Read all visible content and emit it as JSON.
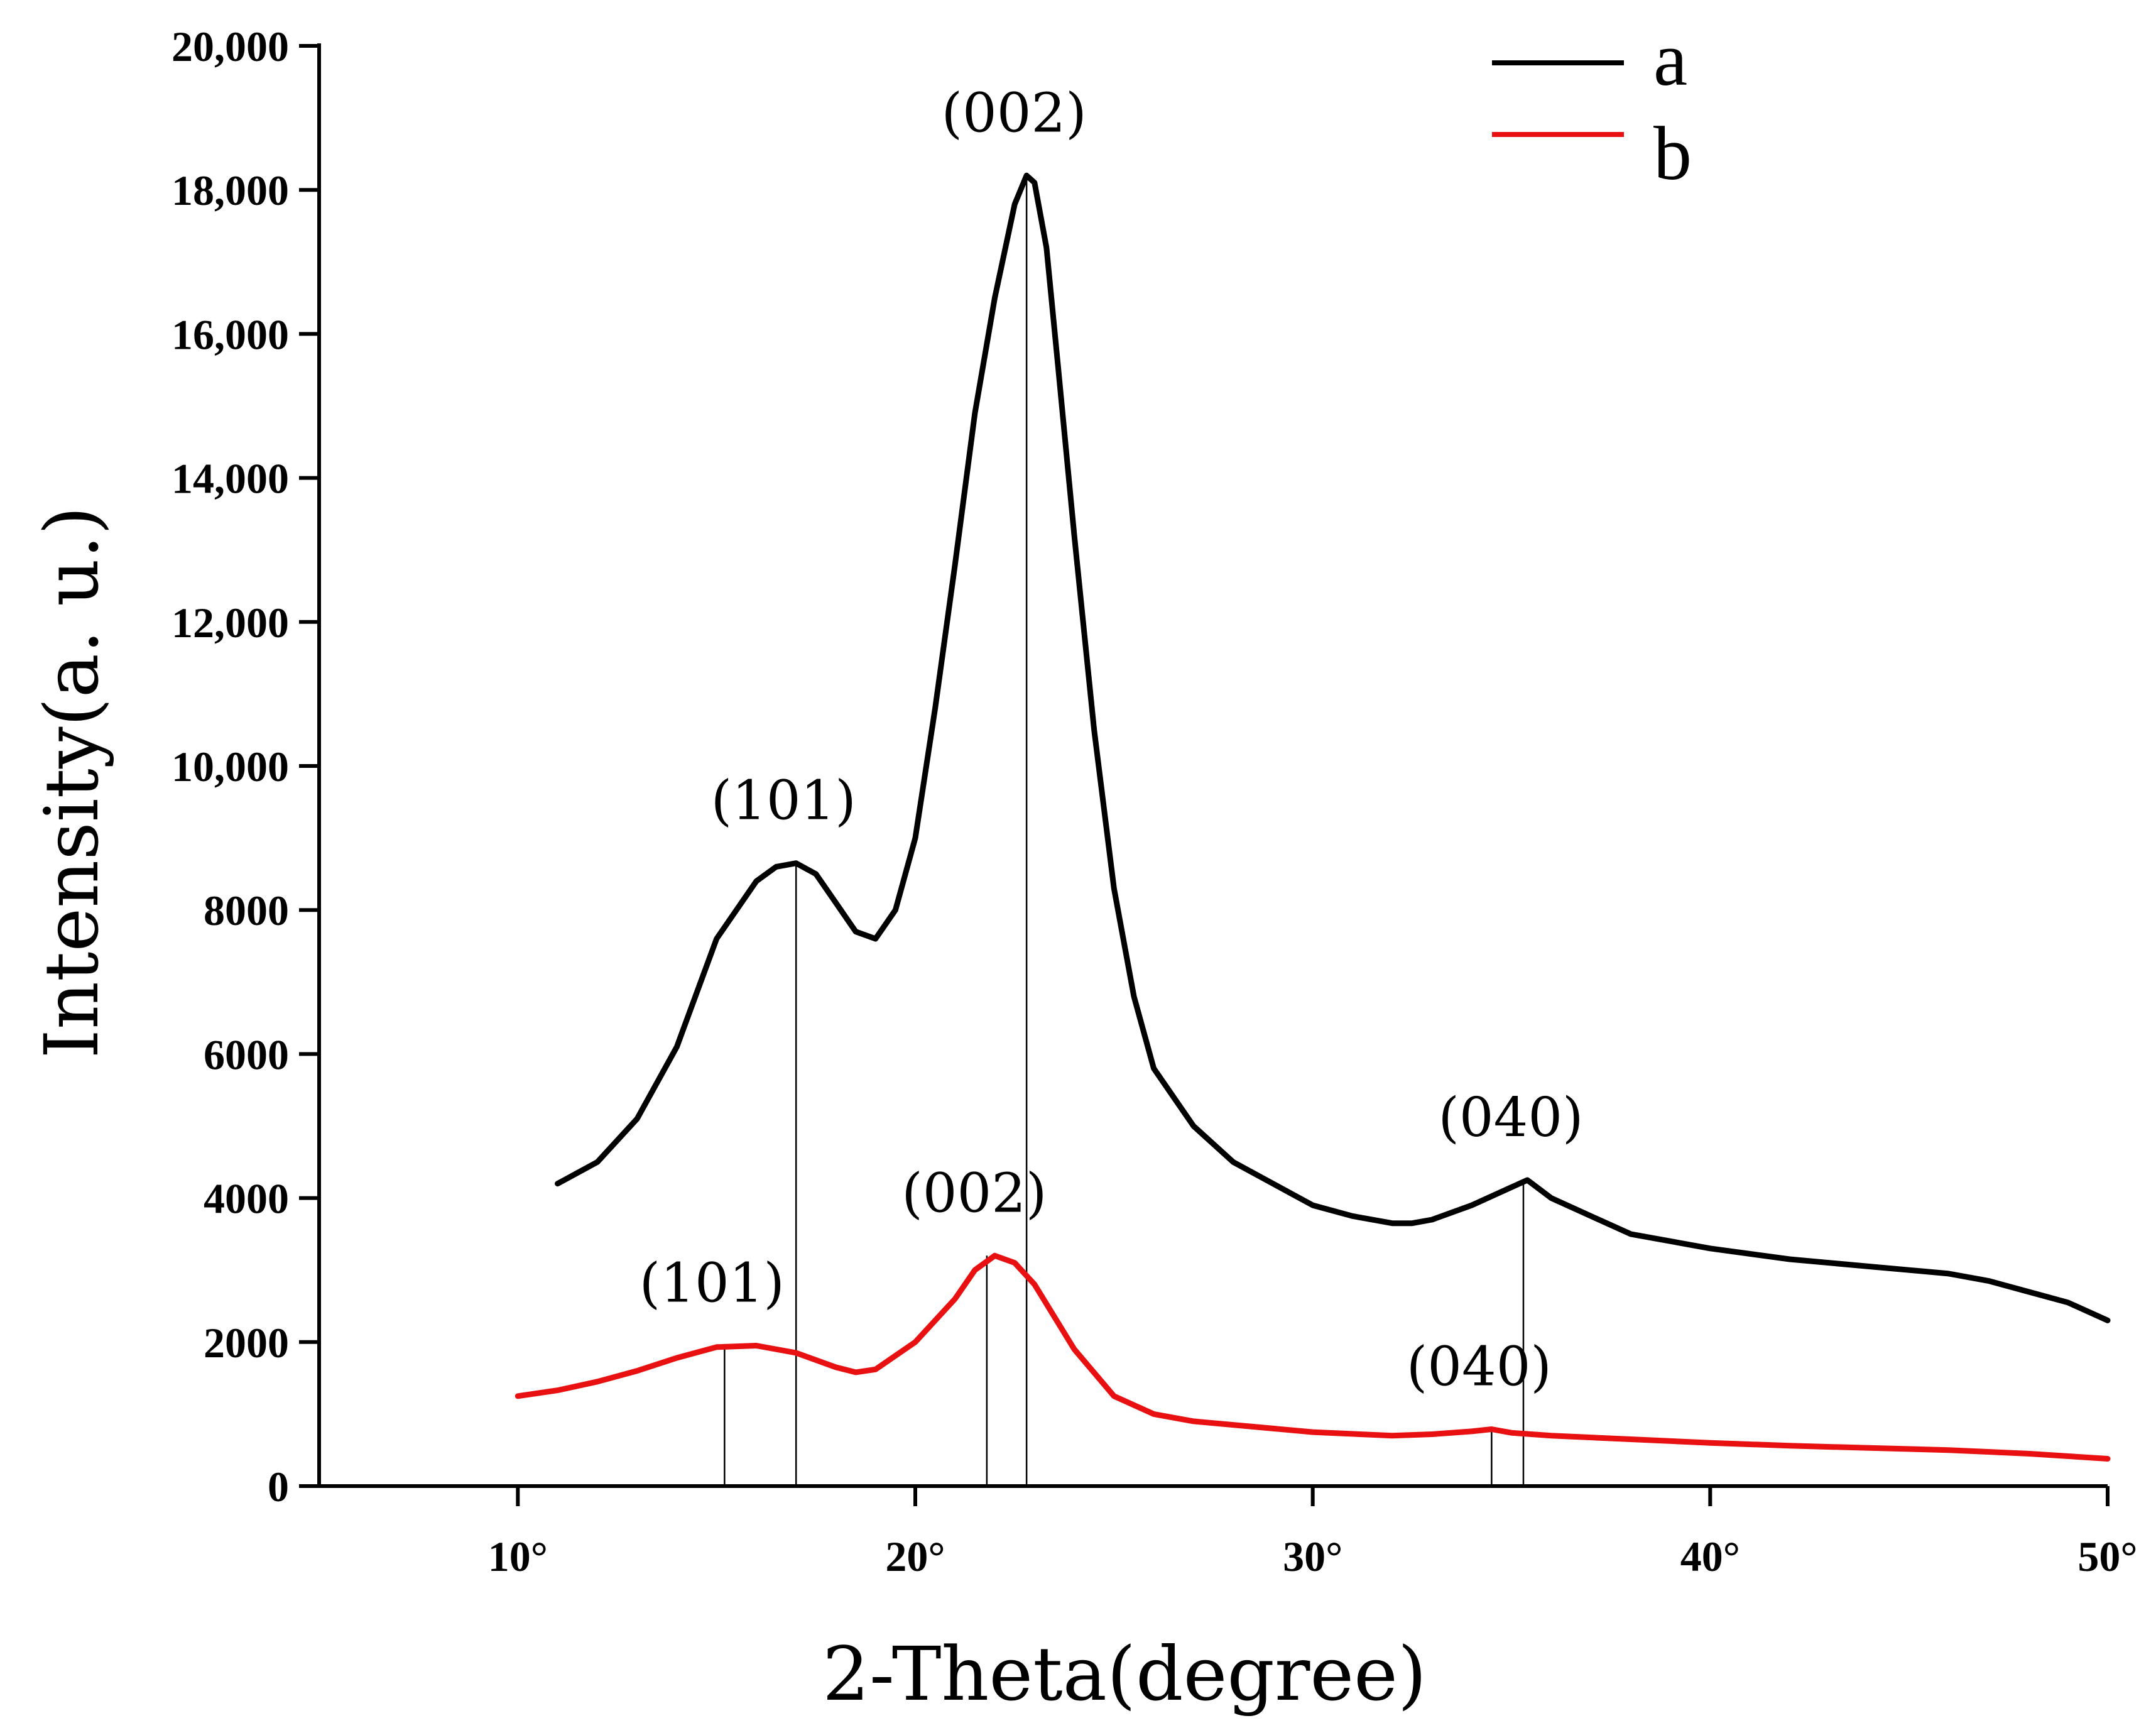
{
  "chart_data": {
    "type": "line",
    "title": "",
    "xlabel": "2-Theta(degree)",
    "ylabel": "Intensity(a. u.)",
    "xlim": [
      5,
      50
    ],
    "ylim": [
      0,
      20000
    ],
    "x_ticks": [
      {
        "value": 10,
        "label": "10°"
      },
      {
        "value": 20,
        "label": "20°"
      },
      {
        "value": 30,
        "label": "30°"
      },
      {
        "value": 40,
        "label": "40°"
      },
      {
        "value": 50,
        "label": "50°"
      }
    ],
    "y_ticks": [
      {
        "value": 0,
        "label": "0"
      },
      {
        "value": 2000,
        "label": "2000"
      },
      {
        "value": 4000,
        "label": "4000"
      },
      {
        "value": 6000,
        "label": "6000"
      },
      {
        "value": 8000,
        "label": "8000"
      },
      {
        "value": 10000,
        "label": "10,000"
      },
      {
        "value": 12000,
        "label": "12,000"
      },
      {
        "value": 14000,
        "label": "14,000"
      },
      {
        "value": 16000,
        "label": "16,000"
      },
      {
        "value": 18000,
        "label": "18,000"
      },
      {
        "value": 20000,
        "label": "20,000"
      }
    ],
    "grid": false,
    "legend_position": "top-right",
    "series": [
      {
        "name": "a",
        "color": "#000000",
        "x": [
          11.0,
          12.0,
          13.0,
          14.0,
          15.0,
          16.0,
          16.5,
          17.0,
          17.5,
          18.0,
          18.5,
          19.0,
          19.5,
          20.0,
          20.5,
          21.0,
          21.5,
          22.0,
          22.5,
          22.8,
          23.0,
          23.3,
          23.6,
          24.0,
          24.5,
          25.0,
          25.5,
          26.0,
          27.0,
          28.0,
          29.0,
          30.0,
          31.0,
          32.0,
          32.5,
          33.0,
          34.0,
          35.0,
          35.4,
          36.0,
          37.0,
          38.0,
          40.0,
          42.0,
          44.0,
          45.0,
          46.0,
          47.0,
          48.0,
          49.0,
          50.0
        ],
        "y": [
          4200,
          4500,
          5100,
          6100,
          7600,
          8400,
          8600,
          8650,
          8500,
          8100,
          7700,
          7600,
          8000,
          9000,
          10800,
          12800,
          14900,
          16500,
          17800,
          18200,
          18100,
          17200,
          15500,
          13200,
          10500,
          8300,
          6800,
          5800,
          5000,
          4500,
          4200,
          3900,
          3750,
          3650,
          3650,
          3700,
          3900,
          4150,
          4250,
          4000,
          3750,
          3500,
          3300,
          3150,
          3050,
          3000,
          2950,
          2850,
          2700,
          2550,
          2300
        ]
      },
      {
        "name": "b",
        "color": "#e81010",
        "x": [
          10.0,
          11.0,
          12.0,
          13.0,
          14.0,
          15.0,
          16.0,
          17.0,
          18.0,
          18.5,
          19.0,
          20.0,
          21.0,
          21.5,
          22.0,
          22.5,
          23.0,
          24.0,
          25.0,
          26.0,
          27.0,
          28.0,
          30.0,
          32.0,
          33.0,
          34.0,
          34.5,
          35.0,
          36.0,
          38.0,
          40.0,
          42.0,
          44.0,
          46.0,
          48.0,
          50.0
        ],
        "y": [
          1250,
          1330,
          1450,
          1600,
          1780,
          1930,
          1950,
          1850,
          1650,
          1580,
          1620,
          2000,
          2600,
          3000,
          3200,
          3100,
          2800,
          1900,
          1250,
          1000,
          900,
          850,
          750,
          700,
          720,
          760,
          790,
          740,
          700,
          650,
          600,
          560,
          530,
          500,
          450,
          380
        ]
      }
    ],
    "peak_markers": [
      {
        "label": "(101)",
        "series": "a",
        "x": 17.0,
        "y": 8650
      },
      {
        "label": "(002)",
        "series": "a",
        "x": 22.8,
        "y": 18200
      },
      {
        "label": "(040)",
        "series": "a",
        "x": 35.3,
        "y": 4250
      },
      {
        "label": "(101)",
        "series": "b",
        "x": 15.2,
        "y": 1950
      },
      {
        "label": "(002)",
        "series": "b",
        "x": 21.8,
        "y": 3200
      },
      {
        "label": "(040)",
        "series": "b",
        "x": 34.5,
        "y": 790
      }
    ]
  }
}
